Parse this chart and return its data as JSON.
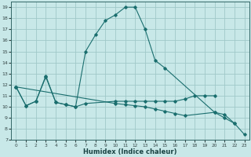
{
  "xlabel": "Humidex (Indice chaleur)",
  "bg_color": "#c8e8e8",
  "grid_color": "#a0c8c8",
  "line_color": "#1a6e6e",
  "xlim": [
    -0.5,
    23.5
  ],
  "ylim": [
    7,
    19.5
  ],
  "xticks": [
    0,
    1,
    2,
    3,
    4,
    5,
    6,
    7,
    8,
    9,
    10,
    11,
    12,
    13,
    14,
    15,
    16,
    17,
    18,
    19,
    20,
    21,
    22,
    23
  ],
  "yticks": [
    7,
    8,
    9,
    10,
    11,
    12,
    13,
    14,
    15,
    16,
    17,
    18,
    19
  ],
  "line1_x": [
    0,
    1,
    2,
    3,
    4,
    5,
    6,
    7,
    10,
    11,
    12,
    13,
    14,
    15,
    16,
    17,
    18,
    19,
    20
  ],
  "line1_y": [
    11.8,
    10.1,
    10.5,
    12.7,
    10.4,
    10.2,
    10.0,
    10.3,
    10.5,
    10.5,
    10.5,
    10.5,
    10.5,
    10.5,
    10.5,
    10.7,
    11.0,
    11.0,
    11.0
  ],
  "line2_x": [
    0,
    1,
    2,
    3,
    4,
    5,
    6,
    7,
    8,
    9,
    10,
    11,
    12,
    13,
    14,
    15,
    20,
    21,
    22
  ],
  "line2_y": [
    11.8,
    10.1,
    10.5,
    12.8,
    10.4,
    10.2,
    10.0,
    15.0,
    16.5,
    17.8,
    18.3,
    19.0,
    19.0,
    17.0,
    14.2,
    13.5,
    9.5,
    9.3,
    8.5
  ],
  "line3_x": [
    0,
    10,
    11,
    12,
    13,
    14,
    15,
    16,
    17,
    20,
    21,
    22,
    23
  ],
  "line3_y": [
    11.8,
    10.3,
    10.2,
    10.1,
    10.0,
    9.8,
    9.6,
    9.4,
    9.2,
    9.5,
    9.0,
    8.5,
    7.5
  ]
}
